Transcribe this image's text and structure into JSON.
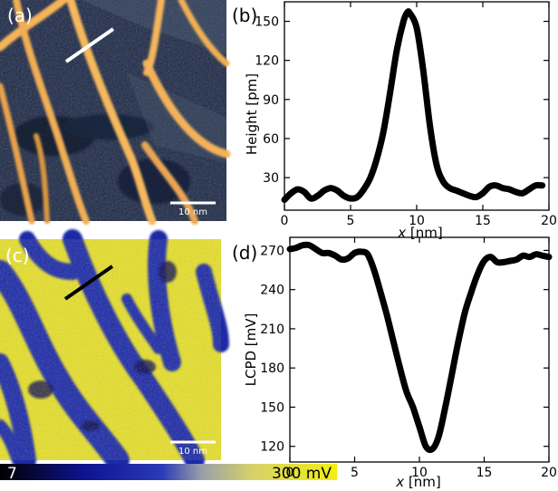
{
  "panels": {
    "a": {
      "label": "(a)",
      "scalebar": "10 nm"
    },
    "c": {
      "label": "(c)",
      "scalebar": "10 nm"
    }
  },
  "colorbar": {
    "min_label": "7",
    "max_label": "300 mV"
  },
  "colors": {
    "topo_dark": "#1b2743",
    "topo_mid": "#3b4a5e",
    "topo_bright": "#f3b45a",
    "kpfm_blue": "#1a2aa8",
    "kpfm_yellow": "#ece324",
    "line_a": "#ffffff",
    "line_c": "#000000",
    "profile": "#000000"
  },
  "chart_data": [
    {
      "panel": "(b)",
      "type": "line",
      "xlabel_italic": "x",
      "xlabel_unit": "[nm]",
      "ylabel": "Height [pm]",
      "xlim": [
        0,
        20
      ],
      "ylim": [
        5,
        165
      ],
      "xticks": [
        0,
        5,
        10,
        15,
        20
      ],
      "yticks": [
        30,
        60,
        90,
        120,
        150
      ],
      "x": [
        0,
        0.5,
        1,
        1.5,
        2,
        2.5,
        3,
        3.5,
        4,
        4.5,
        5,
        5.5,
        6,
        6.5,
        7,
        7.5,
        8,
        8.5,
        9,
        9.3,
        9.5,
        10,
        10.5,
        11,
        11.5,
        12,
        12.5,
        13,
        13.5,
        14,
        14.5,
        15,
        15.5,
        16,
        16.5,
        17,
        17.5,
        18,
        18.5,
        19,
        19.5
      ],
      "y": [
        13,
        18,
        21,
        19,
        14,
        16,
        20,
        22,
        20,
        16,
        14,
        15,
        21,
        30,
        45,
        66,
        96,
        128,
        150,
        157,
        156,
        145,
        112,
        70,
        40,
        27,
        22,
        20,
        18,
        16,
        15,
        18,
        23,
        24,
        22,
        21,
        19,
        18,
        21,
        24,
        24
      ]
    },
    {
      "panel": "(d)",
      "type": "line",
      "xlabel_italic": "x",
      "xlabel_unit": "[nm]",
      "ylabel": "LCPD [mV]",
      "xlim": [
        0,
        20
      ],
      "ylim": [
        108,
        280
      ],
      "xticks": [
        0,
        5,
        10,
        15,
        20
      ],
      "yticks": [
        120,
        150,
        180,
        210,
        240,
        270
      ],
      "x": [
        0,
        0.5,
        1,
        1.5,
        2,
        2.5,
        3,
        3.5,
        4,
        4.5,
        5,
        5.5,
        6,
        6.5,
        7,
        7.5,
        8,
        8.5,
        9,
        9.5,
        10,
        10.5,
        11,
        11.5,
        12,
        12.5,
        13,
        13.5,
        14,
        14.5,
        15,
        15.5,
        16,
        16.5,
        17,
        17.5,
        18,
        18.5,
        19,
        19.5,
        20
      ],
      "y": [
        271,
        272,
        274,
        274,
        271,
        268,
        268,
        266,
        263,
        264,
        268,
        269,
        267,
        255,
        238,
        220,
        200,
        180,
        162,
        150,
        135,
        120,
        118,
        128,
        150,
        175,
        200,
        222,
        238,
        252,
        262,
        265,
        261,
        261,
        262,
        263,
        266,
        265,
        267,
        266,
        265
      ]
    }
  ]
}
